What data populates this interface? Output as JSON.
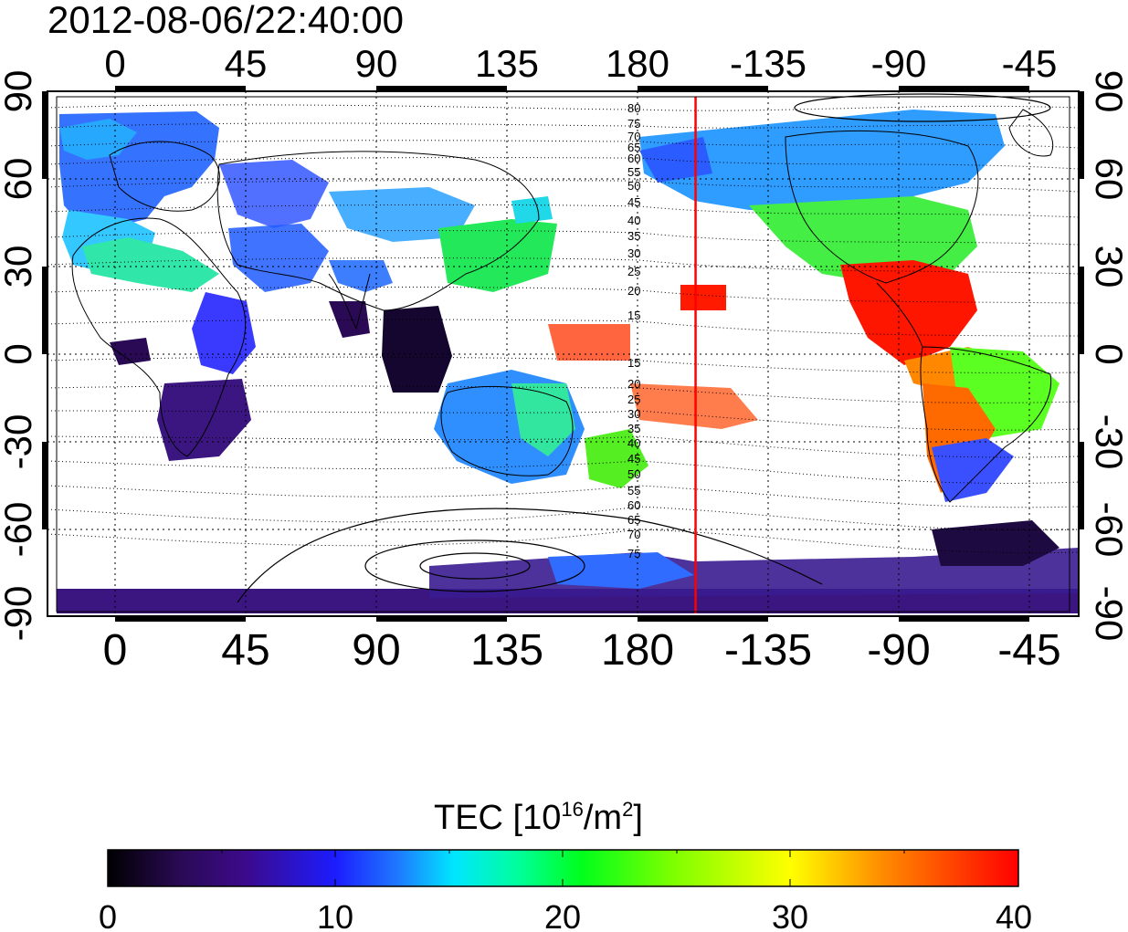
{
  "title": "2012-08-06/22:40:00",
  "map": {
    "top_ticks": [
      "0",
      "45",
      "90",
      "135",
      "180",
      "-135",
      "-90",
      "-45"
    ],
    "bottom_ticks": [
      "0",
      "45",
      "90",
      "135",
      "180",
      "-135",
      "-90",
      "-45"
    ],
    "left_ticks": [
      "90",
      "60",
      "30",
      "0",
      "-30",
      "-60",
      "-90"
    ],
    "right_ticks": [
      "90",
      "60",
      "30",
      "0",
      "-30",
      "-60",
      "-90"
    ],
    "north_contour_labels": [
      "80",
      "75",
      "70",
      "65",
      "60",
      "55",
      "50",
      "45",
      "40",
      "35",
      "30",
      "25",
      "20",
      "15"
    ],
    "south_contour_labels": [
      "15",
      "20",
      "25",
      "30",
      "35",
      "40",
      "45",
      "50",
      "55",
      "60",
      "65",
      "70",
      "75"
    ],
    "terminator_longitude": -160
  },
  "colorbar": {
    "label_main": "TEC  [10",
    "label_sup1": "16",
    "label_mid": "/m",
    "label_sup2": "2",
    "label_end": "]",
    "ticks": [
      "0",
      "10",
      "20",
      "30",
      "40"
    ],
    "min": 0,
    "max": 40
  }
}
